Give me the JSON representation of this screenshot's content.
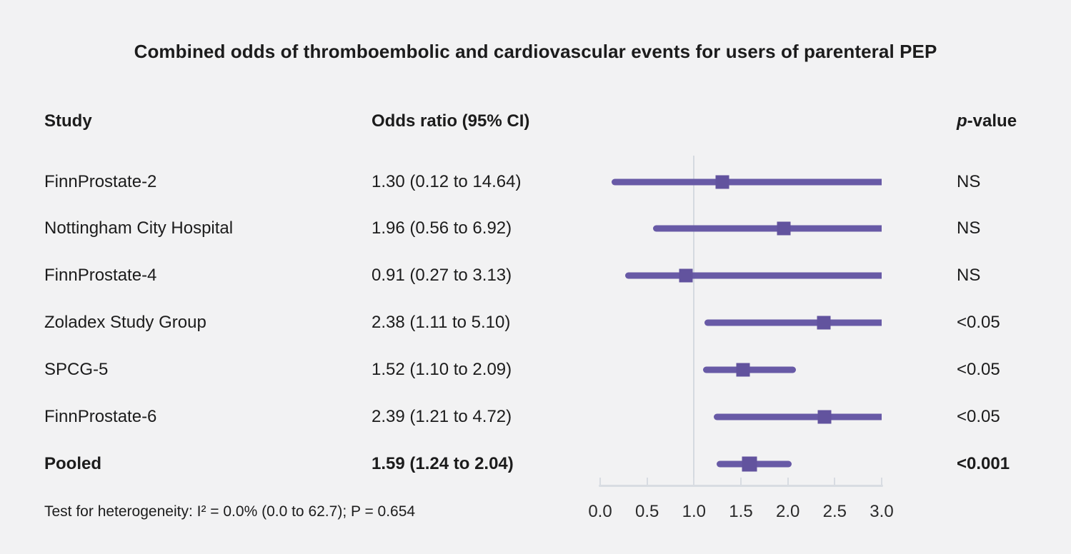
{
  "title": "Combined odds of thromboembolic and cardiovascular events for users of parenteral PEP",
  "columns": {
    "study": "Study",
    "odds_ratio": "Odds ratio (95% CI)",
    "p_value_prefix": "p",
    "p_value_suffix": "-value"
  },
  "footnote": "Test for heterogeneity: I² = 0.0% (0.0 to 62.7); P = 0.654",
  "colors": {
    "background": "#f2f2f3",
    "text": "#1c1c1c",
    "ci_line": "#685aa6",
    "marker": "#62539e",
    "axis_gray": "#d8dce2"
  },
  "chart_data": {
    "type": "forest",
    "title": "Combined odds of thromboembolic and cardiovascular events for users of parenteral PEP",
    "xlabel": "",
    "ylabel": "",
    "xlim": [
      0.0,
      3.0
    ],
    "reference_line": 1.0,
    "grid": false,
    "tick_values": [
      0.0,
      0.5,
      1.0,
      1.5,
      2.0,
      2.5,
      3.0
    ],
    "tick_labels": [
      "0.0",
      "0.5",
      "1.0",
      "1.5",
      "2.0",
      "2.5",
      "3.0"
    ],
    "rows": [
      {
        "study": "FinnProstate-2",
        "or": 1.3,
        "ci_low": 0.12,
        "ci_high": 14.64,
        "or_label": "1.30 (0.12 to 14.64)",
        "p": "NS",
        "bold": false
      },
      {
        "study": "Nottingham City Hospital",
        "or": 1.96,
        "ci_low": 0.56,
        "ci_high": 6.92,
        "or_label": "1.96 (0.56 to 6.92)",
        "p": "NS",
        "bold": false
      },
      {
        "study": "FinnProstate-4",
        "or": 0.91,
        "ci_low": 0.27,
        "ci_high": 3.13,
        "or_label": "0.91 (0.27 to 3.13)",
        "p": "NS",
        "bold": false
      },
      {
        "study": "Zoladex Study Group",
        "or": 2.38,
        "ci_low": 1.11,
        "ci_high": 5.1,
        "or_label": "2.38 (1.11 to 5.10)",
        "p": "<0.05",
        "bold": false
      },
      {
        "study": "SPCG-5",
        "or": 1.52,
        "ci_low": 1.1,
        "ci_high": 2.09,
        "or_label": "1.52 (1.10 to 2.09)",
        "p": "<0.05",
        "bold": false
      },
      {
        "study": "FinnProstate-6",
        "or": 2.39,
        "ci_low": 1.21,
        "ci_high": 4.72,
        "or_label": "2.39 (1.21 to 4.72)",
        "p": "<0.05",
        "bold": false
      },
      {
        "study": "Pooled",
        "or": 1.59,
        "ci_low": 1.24,
        "ci_high": 2.04,
        "or_label": "1.59 (1.24 to 2.04)",
        "p": "<0.001",
        "bold": true
      }
    ]
  }
}
